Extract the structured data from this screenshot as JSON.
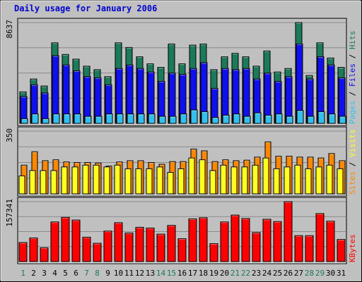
{
  "chart_data": {
    "title": "Daily usage for January 2006",
    "days": [
      "1",
      "2",
      "3",
      "4",
      "5",
      "6",
      "7",
      "8",
      "9",
      "10",
      "11",
      "12",
      "13",
      "14",
      "15",
      "16",
      "17",
      "18",
      "19",
      "20",
      "21",
      "22",
      "23",
      "24",
      "25",
      "26",
      "27",
      "28",
      "29",
      "30",
      "31"
    ],
    "weekend_days": [
      "1",
      "7",
      "8",
      "14",
      "15",
      "21",
      "22",
      "28",
      "29"
    ],
    "colors": {
      "title": "#0000cc",
      "hits": "#1a7a5a",
      "files": "#1010ee",
      "pages": "#33c0ee",
      "visits": "#ffff22",
      "sites": "#ff8800",
      "kbytes": "#ff0000",
      "weekday_label": "#000000",
      "weekend_label": "#1a7a5a"
    },
    "panels": [
      {
        "id": "top",
        "type": "bar",
        "ymax_label": "8637",
        "ylim": [
          0,
          8637
        ],
        "legend": [
          {
            "text": "Pages",
            "color": "#33c0ee"
          },
          {
            "text": " / ",
            "color": "#000000"
          },
          {
            "text": "Files",
            "color": "#1010ee"
          },
          {
            "text": " / ",
            "color": "#000000"
          },
          {
            "text": "Hits",
            "color": "#1a7a5a"
          }
        ],
        "series": [
          {
            "name": "Hits",
            "color": "#1a7a5a",
            "values": [
              2700,
              3800,
              3200,
              6900,
              5900,
              5500,
              4900,
              4600,
              4000,
              6900,
              6500,
              5700,
              5100,
              4800,
              6800,
              5100,
              6700,
              6800,
              4600,
              5700,
              6000,
              5700,
              4900,
              6200,
              4400,
              4700,
              8637,
              4100,
              6900,
              5600,
              4800
            ]
          },
          {
            "name": "Files",
            "color": "#1010ee",
            "values": [
              2300,
              3300,
              2600,
              5800,
              5000,
              4500,
              4000,
              3900,
              3300,
              4700,
              5000,
              4700,
              4400,
              3600,
              4300,
              4200,
              4700,
              5200,
              3000,
              4700,
              4600,
              4700,
              3800,
              4300,
              3600,
              4000,
              6800,
              3800,
              5700,
              5000,
              3900
            ]
          },
          {
            "name": "Pages",
            "color": "#33c0ee",
            "values": [
              400,
              800,
              400,
              800,
              800,
              800,
              600,
              600,
              800,
              800,
              800,
              800,
              800,
              600,
              600,
              800,
              1150,
              1000,
              500,
              700,
              800,
              600,
              900,
              700,
              800,
              600,
              1100,
              600,
              1000,
              800,
              600
            ]
          }
        ]
      },
      {
        "id": "middle",
        "type": "bar",
        "ymax_label": "350",
        "ylim": [
          0,
          350
        ],
        "legend": [
          {
            "text": "Sites",
            "color": "#ff8800"
          },
          {
            "text": " / ",
            "color": "#000000"
          },
          {
            "text": "Visits",
            "color": "#ffff22"
          }
        ],
        "series": [
          {
            "name": "Sites",
            "color": "#ff8800",
            "values": [
              160,
              235,
              185,
              190,
              178,
              175,
              175,
              172,
              155,
              178,
              185,
              185,
              175,
              165,
              180,
              180,
              250,
              240,
              180,
              190,
              185,
              188,
              205,
              290,
              210,
              210,
              205,
              205,
              200,
              225,
              185
            ]
          },
          {
            "name": "Visits",
            "color": "#ffff22",
            "values": [
              100,
              130,
              130,
              130,
              150,
              150,
              160,
              160,
              150,
              160,
              140,
              140,
              140,
              150,
              120,
              140,
              200,
              190,
              130,
              160,
              150,
              150,
              160,
              200,
              140,
              150,
              160,
              140,
              150,
              160,
              140
            ]
          }
        ]
      },
      {
        "id": "bottom",
        "type": "bar",
        "ymax_label": "157341",
        "ylim": [
          0,
          157341
        ],
        "legend": [
          {
            "text": "KBytes",
            "color": "#ff0000"
          }
        ],
        "series": [
          {
            "name": "KBytes",
            "color": "#ff0000",
            "values": [
              50000,
              62000,
              36000,
              104000,
              116000,
              109000,
              64000,
              48000,
              80000,
              102000,
              75000,
              90000,
              88000,
              72000,
              95000,
              60000,
              112000,
              115000,
              47000,
              104000,
              122000,
              113000,
              76000,
              111000,
              105000,
              157341,
              68000,
              68000,
              126000,
              106000,
              58000
            ]
          }
        ]
      }
    ]
  }
}
